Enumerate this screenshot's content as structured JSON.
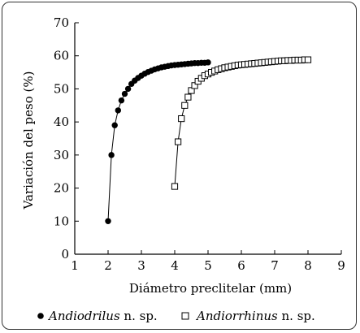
{
  "chart_data": {
    "type": "scatter",
    "title": "",
    "xlabel": "Diámetro preclitelar (mm)",
    "ylabel": "Variación del peso  (%)",
    "xlim": [
      1,
      9
    ],
    "ylim": [
      0,
      70
    ],
    "xticks": [
      1,
      2,
      3,
      4,
      5,
      6,
      7,
      8,
      9
    ],
    "yticks": [
      0,
      10,
      20,
      30,
      40,
      50,
      60,
      70
    ],
    "grid": false,
    "legend_position": "bottom",
    "series": [
      {
        "name_italic": "Andiodrilus",
        "name_suffix": " n. sp.",
        "marker": "filled-circle",
        "color": "#000000",
        "x": [
          2.0,
          2.1,
          2.2,
          2.3,
          2.4,
          2.5,
          2.6,
          2.7,
          2.8,
          2.9,
          3.0,
          3.1,
          3.2,
          3.3,
          3.4,
          3.5,
          3.6,
          3.7,
          3.8,
          3.9,
          4.0,
          4.1,
          4.2,
          4.3,
          4.4,
          4.5,
          4.6,
          4.7,
          4.8,
          4.9,
          5.0
        ],
        "y": [
          10,
          30,
          39,
          43.5,
          46.5,
          48.5,
          50,
          51.5,
          52.5,
          53.3,
          54,
          54.6,
          55.1,
          55.5,
          55.9,
          56.2,
          56.5,
          56.7,
          56.9,
          57.1,
          57.2,
          57.3,
          57.4,
          57.5,
          57.6,
          57.7,
          57.8,
          57.8,
          57.9,
          57.9,
          58
        ]
      },
      {
        "name_italic": "Andiorrhinus",
        "name_suffix": "  n. sp.",
        "marker": "open-square",
        "color": "#000000",
        "x": [
          4.0,
          4.1,
          4.2,
          4.3,
          4.4,
          4.5,
          4.6,
          4.7,
          4.8,
          4.9,
          5.0,
          5.1,
          5.2,
          5.3,
          5.4,
          5.5,
          5.6,
          5.7,
          5.8,
          5.9,
          6.0,
          6.1,
          6.2,
          6.3,
          6.4,
          6.5,
          6.6,
          6.7,
          6.8,
          6.9,
          7.0,
          7.1,
          7.2,
          7.3,
          7.4,
          7.5,
          7.6,
          7.7,
          7.8,
          7.9,
          8.0
        ],
        "y": [
          20.5,
          34,
          41,
          45,
          47.5,
          49.5,
          51,
          52.3,
          53.2,
          54,
          54.5,
          55,
          55.4,
          55.8,
          56.1,
          56.4,
          56.6,
          56.8,
          57,
          57.2,
          57.3,
          57.4,
          57.5,
          57.6,
          57.7,
          57.8,
          57.9,
          58,
          58.1,
          58.2,
          58.3,
          58.4,
          58.5,
          58.5,
          58.6,
          58.6,
          58.7,
          58.7,
          58.7,
          58.8,
          58.8
        ]
      }
    ]
  }
}
